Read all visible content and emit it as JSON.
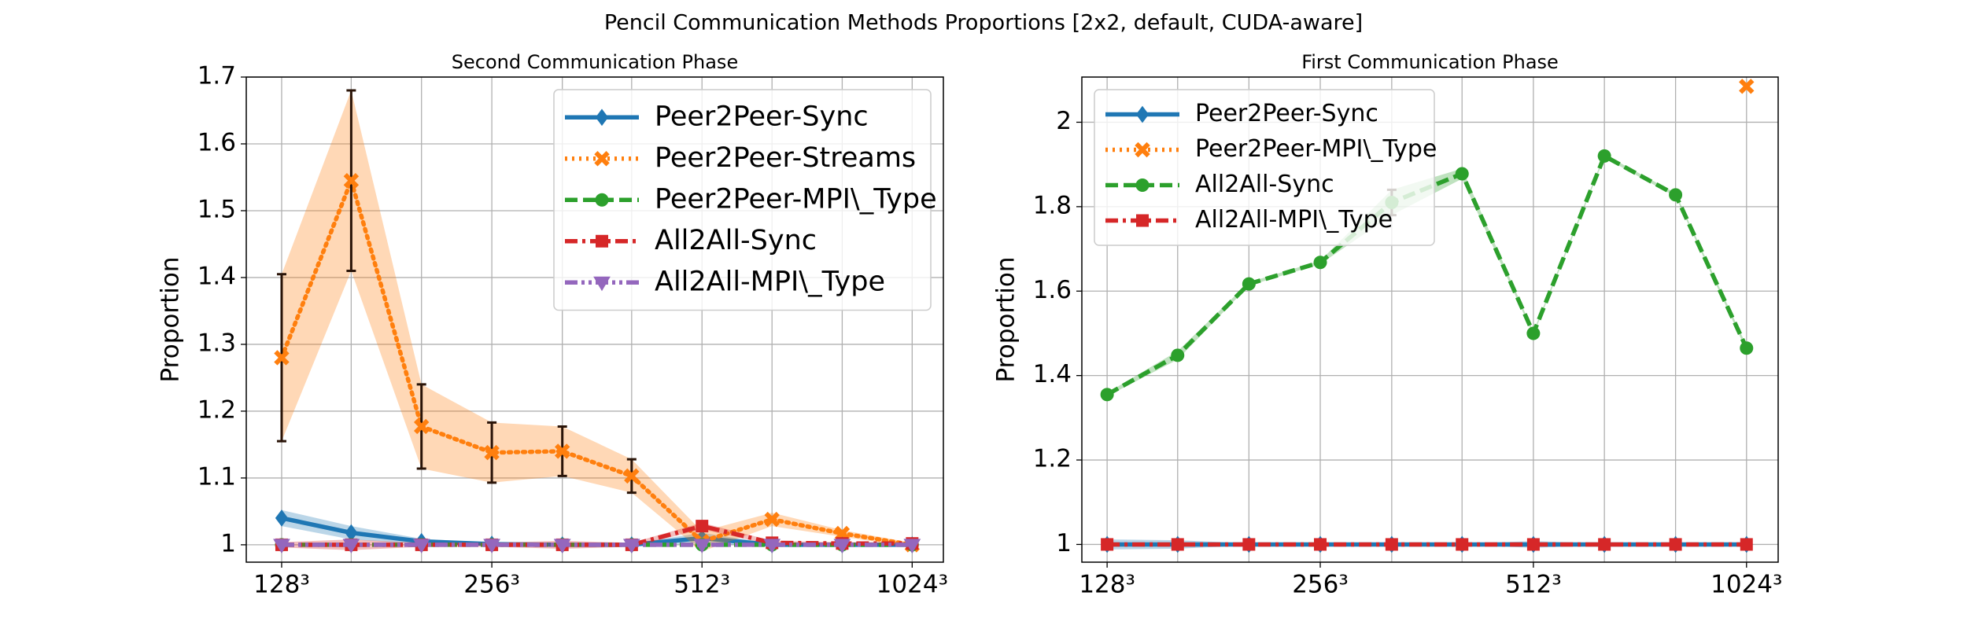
{
  "title": "Pencil Communication Methods Proportions [2x2, default, CUDA-aware]",
  "chart_data": [
    {
      "type": "line",
      "title": "Second Communication Phase",
      "y_label": "Proportion",
      "x": [
        128,
        161,
        203,
        256,
        323,
        406,
        512,
        645,
        813,
        1024
      ],
      "xscale": "log",
      "xlim": [
        113.9,
        1135
      ],
      "ylim": [
        0.974,
        1.7
      ],
      "xticks": [
        {
          "value": 128,
          "label": "128³"
        },
        {
          "value": 256,
          "label": "256³"
        },
        {
          "value": 512,
          "label": "512³"
        },
        {
          "value": 1024,
          "label": "1024³"
        }
      ],
      "yticks": [
        1.0,
        1.1,
        1.2,
        1.3,
        1.4,
        1.5,
        1.6,
        1.7
      ],
      "grid": true,
      "legend": "upper right",
      "series": [
        {
          "name": "Peer2Peer-Sync",
          "color": "#1f77b4",
          "marker": "diamond",
          "linestyle": "solid",
          "values": [
            1.04,
            1.018,
            1.005,
            1.001,
            1.0,
            1.0,
            1.01,
            1.0,
            1.0,
            1.0
          ],
          "errors": [
            0.012,
            0.01,
            0.004,
            0.002,
            0.002,
            0.002,
            0.008,
            0.002,
            0.002,
            0.001
          ]
        },
        {
          "name": "Peer2Peer-Streams",
          "color": "#ff7f0e",
          "marker": "x",
          "linestyle": "dotted",
          "values": [
            1.28,
            1.545,
            1.177,
            1.138,
            1.14,
            1.103,
            1.005,
            1.038,
            1.017,
            1.0
          ],
          "errors": [
            0.125,
            0.135,
            0.063,
            0.045,
            0.037,
            0.025,
            0.015,
            0.01,
            0.005,
            0.003
          ]
        },
        {
          "name": "Peer2Peer-MPI\\_Type",
          "color": "#2ca02c",
          "marker": "circle",
          "linestyle": "dashed",
          "values": [
            1.0,
            1.0,
            1.0,
            1.0,
            1.0,
            1.0,
            1.0,
            1.0,
            1.0,
            1.0
          ]
        },
        {
          "name": "All2All-Sync",
          "color": "#d62728",
          "marker": "square",
          "linestyle": "dashdot",
          "values": [
            1.0,
            1.0,
            1.0,
            1.0,
            1.0,
            1.0,
            1.028,
            1.003,
            1.002,
            1.002
          ],
          "errors": [
            0.004,
            0.008,
            0.003,
            0.003,
            0.006,
            0.003,
            0.005,
            0.003,
            0.002,
            0.002
          ]
        },
        {
          "name": "All2All-MPI\\_Type",
          "color": "#9467bd",
          "marker": "triangle",
          "linestyle": "dashdotdot",
          "values": [
            1.0,
            1.0,
            1.0,
            1.0,
            1.0,
            1.0,
            1.0,
            1.0,
            1.0,
            1.0
          ]
        }
      ]
    },
    {
      "type": "line",
      "title": "First Communication Phase",
      "y_label": "Proportion",
      "x": [
        128,
        161,
        203,
        256,
        323,
        406,
        512,
        645,
        813,
        1024
      ],
      "xscale": "log",
      "xlim": [
        117.9,
        1135
      ],
      "ylim": [
        0.958,
        2.107
      ],
      "xticks": [
        {
          "value": 128,
          "label": "128³"
        },
        {
          "value": 256,
          "label": "256³"
        },
        {
          "value": 512,
          "label": "512³"
        },
        {
          "value": 1024,
          "label": "1024³"
        }
      ],
      "yticks": [
        1.0,
        1.2,
        1.4,
        1.6,
        1.8,
        2.0
      ],
      "grid": true,
      "legend": "upper left",
      "series": [
        {
          "name": "Peer2Peer-Sync",
          "color": "#1f77b4",
          "marker": "diamond",
          "linestyle": "solid",
          "values": [
            1.0,
            1.0,
            1.0,
            1.0,
            1.0,
            1.0,
            1.0,
            1.0,
            1.0,
            1.0
          ],
          "errors": [
            0.012,
            0.01,
            0.003,
            0.002,
            0.002,
            0.002,
            0.008,
            0.002,
            0.002,
            0.001
          ]
        },
        {
          "name": "Peer2Peer-MPI\\_Type",
          "color": "#ff7f0e",
          "marker": "x",
          "linestyle": "dotted",
          "values": [
            null,
            null,
            null,
            null,
            null,
            null,
            null,
            null,
            null,
            2.085
          ]
        },
        {
          "name": "All2All-Sync",
          "color": "#2ca02c",
          "marker": "circle",
          "linestyle": "dashed",
          "values": [
            1.355,
            1.448,
            1.617,
            1.668,
            1.81,
            1.878,
            1.5,
            1.92,
            1.828,
            1.465
          ],
          "errors": [
            0.004,
            0.01,
            0.004,
            0.004,
            0.03,
            0.012,
            0.004,
            0.004,
            0.004,
            0.006
          ]
        },
        {
          "name": "All2All-MPI\\_Type",
          "color": "#d62728",
          "marker": "square",
          "linestyle": "dashdot",
          "values": [
            1.0,
            1.0,
            1.0,
            1.0,
            1.0,
            1.0,
            1.0,
            1.0,
            1.0,
            1.0
          ]
        }
      ]
    }
  ]
}
